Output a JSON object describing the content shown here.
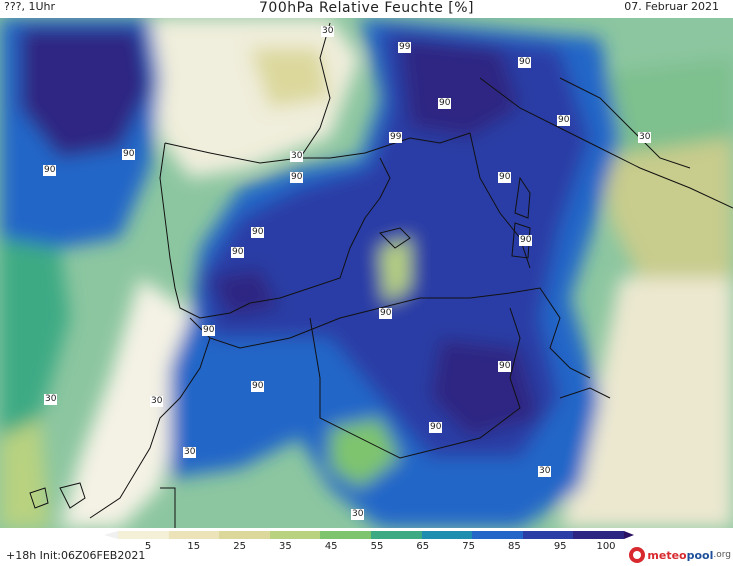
{
  "header": {
    "left_label": "???, 1Uhr",
    "title": "700hPa Relative Feuchte [%]",
    "date": "07. Februar 2021"
  },
  "map": {
    "contour_labels": [
      {
        "text": "30"
      },
      {
        "text": "99"
      },
      {
        "text": "90"
      },
      {
        "text": "90"
      },
      {
        "text": "90"
      },
      {
        "text": "90"
      },
      {
        "text": "99"
      },
      {
        "text": "30"
      },
      {
        "text": "90"
      },
      {
        "text": "90"
      },
      {
        "text": "90"
      },
      {
        "text": "90"
      },
      {
        "text": "90"
      },
      {
        "text": "90"
      },
      {
        "text": "90"
      },
      {
        "text": "90"
      },
      {
        "text": "90"
      },
      {
        "text": "90"
      },
      {
        "text": "30"
      },
      {
        "text": "30"
      },
      {
        "text": "30"
      },
      {
        "text": "30"
      },
      {
        "text": "30"
      },
      {
        "text": "90"
      },
      {
        "text": "30"
      }
    ]
  },
  "colorbar": {
    "ticks": [
      "5",
      "15",
      "25",
      "35",
      "45",
      "55",
      "65",
      "75",
      "85",
      "95",
      "100"
    ],
    "colors": [
      "#f0f0f0",
      "#f4f0d8",
      "#ece4b8",
      "#dcd89c",
      "#b8d280",
      "#7ec46e",
      "#3eaa84",
      "#1e8eb0",
      "#2466c8",
      "#2b3ea6",
      "#2d2582",
      "#2a1060"
    ]
  },
  "footer": {
    "init_text": "+18h  Init:06Z06FEB2021",
    "logo_part1": "meteo",
    "logo_part2": "pool",
    "logo_part3": ".org"
  }
}
